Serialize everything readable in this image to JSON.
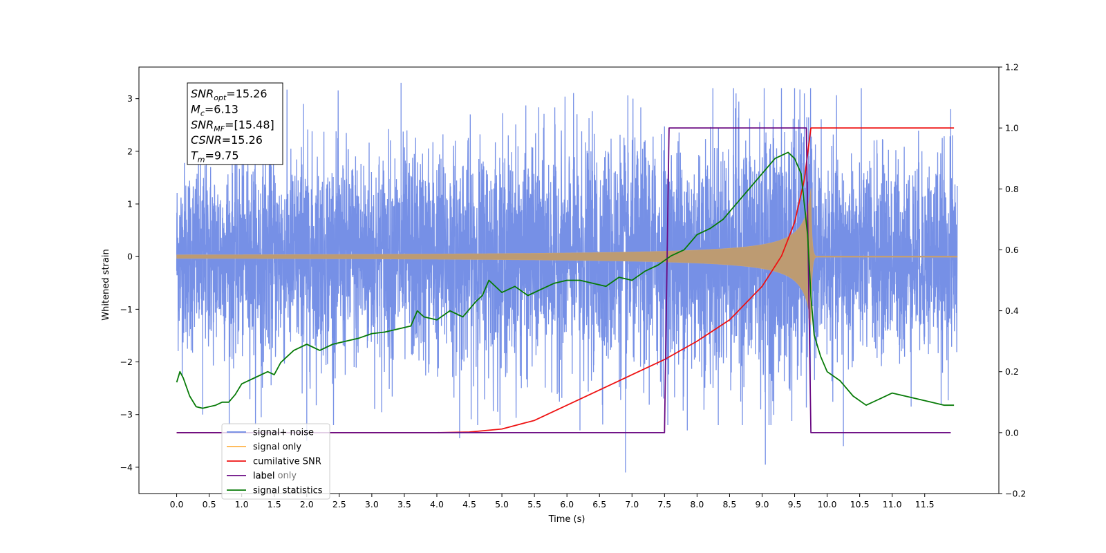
{
  "chart_data": {
    "type": "line",
    "xlabel": "Time (s)",
    "ylabel": "Whitened strain",
    "xlim": [
      -0.58,
      12.64
    ],
    "ylim": [
      -4.5,
      3.6
    ],
    "y2lim": [
      -0.2,
      1.2
    ],
    "x_ticks": [
      "0.0",
      "0.5",
      "1.0",
      "1.5",
      "2.0",
      "2.5",
      "3.0",
      "3.5",
      "4.0",
      "4.5",
      "5.0",
      "5.5",
      "6.0",
      "6.5",
      "7.0",
      "7.5",
      "8.0",
      "8.5",
      "9.0",
      "9.5",
      "10.0",
      "10.5",
      "11.0",
      "11.5"
    ],
    "y_ticks": [
      "3",
      "2",
      "1",
      "0",
      "−1",
      "−2",
      "−3",
      "−4"
    ],
    "y2_ticks": [
      "1.2",
      "1.0",
      "0.8",
      "0.6",
      "0.4",
      "0.2",
      "0.0",
      "−0.2"
    ],
    "legend_position": "lower-left",
    "series": [
      {
        "name": "signal+ noise",
        "color": "#6a87e4",
        "axis": "left",
        "kind": "noise",
        "x_range": [
          0,
          12
        ],
        "envelope": [
          [
            0,
            1.5
          ],
          [
            1,
            1.6
          ],
          [
            2,
            1.7
          ],
          [
            3,
            1.75
          ],
          [
            4,
            1.75
          ],
          [
            5,
            1.8
          ],
          [
            6,
            1.8
          ],
          [
            7,
            1.85
          ],
          [
            8,
            1.95
          ],
          [
            9,
            2.1
          ],
          [
            9.5,
            2.2
          ],
          [
            9.75,
            2.2
          ],
          [
            9.8,
            1.6
          ],
          [
            12,
            1.6
          ]
        ],
        "spikes": [
          [
            3.45,
            3.3
          ],
          [
            9.5,
            3.2
          ],
          [
            9.65,
            3.1
          ],
          [
            8.6,
            3.1
          ],
          [
            1.95,
            2.9
          ],
          [
            11.9,
            2.8
          ],
          [
            4.35,
            -3.45
          ],
          [
            6.9,
            -4.1
          ],
          [
            9.05,
            -3.95
          ],
          [
            10.25,
            -3.6
          ],
          [
            6.2,
            -3.3
          ],
          [
            7.85,
            -3.3
          ],
          [
            2.0,
            -3.5
          ],
          [
            0.4,
            -3.0
          ],
          [
            1.3,
            -3.05
          ]
        ]
      },
      {
        "name": "signal only",
        "color": "#ffb347",
        "axis": "left",
        "kind": "chirp",
        "merger_time": 9.75,
        "peak_amplitude": 1.3
      },
      {
        "name": "cumilative SNR",
        "color": "#ee1111",
        "axis": "right",
        "x": [
          0,
          4.0,
          4.5,
          5.0,
          5.5,
          6.0,
          6.5,
          7.0,
          7.5,
          8.0,
          8.5,
          9.0,
          9.3,
          9.5,
          9.65,
          9.75,
          11.95
        ],
        "y": [
          0,
          0,
          0.002,
          0.012,
          0.04,
          0.09,
          0.14,
          0.19,
          0.24,
          0.3,
          0.37,
          0.48,
          0.58,
          0.69,
          0.83,
          1.0,
          1.0
        ]
      },
      {
        "name": "label",
        "color": "#6a0a82",
        "axis": "right",
        "x": [
          0,
          7.5,
          7.57,
          9.68,
          9.75,
          11.9
        ],
        "y": [
          0,
          0,
          1.0,
          1.0,
          0,
          0
        ]
      },
      {
        "name": "signal statistics",
        "color": "#067a06",
        "axis": "right",
        "x": [
          0,
          0.05,
          0.1,
          0.2,
          0.3,
          0.4,
          0.5,
          0.6,
          0.7,
          0.8,
          0.9,
          1.0,
          1.2,
          1.4,
          1.5,
          1.6,
          1.7,
          1.8,
          2.0,
          2.2,
          2.4,
          2.6,
          2.8,
          3.0,
          3.2,
          3.4,
          3.6,
          3.7,
          3.8,
          4.0,
          4.2,
          4.4,
          4.6,
          4.7,
          4.8,
          5.0,
          5.2,
          5.4,
          5.6,
          5.8,
          6.0,
          6.2,
          6.4,
          6.6,
          6.8,
          7.0,
          7.2,
          7.4,
          7.6,
          7.8,
          8.0,
          8.2,
          8.4,
          8.6,
          8.8,
          9.0,
          9.2,
          9.4,
          9.5,
          9.6,
          9.7,
          9.75,
          9.8,
          9.9,
          10.0,
          10.2,
          10.4,
          10.6,
          10.8,
          11.0,
          11.2,
          11.4,
          11.6,
          11.8,
          11.95
        ],
        "y": [
          0.165,
          0.2,
          0.18,
          0.12,
          0.085,
          0.08,
          0.085,
          0.09,
          0.1,
          0.1,
          0.125,
          0.16,
          0.18,
          0.2,
          0.19,
          0.23,
          0.25,
          0.27,
          0.29,
          0.27,
          0.29,
          0.3,
          0.31,
          0.325,
          0.33,
          0.34,
          0.35,
          0.4,
          0.38,
          0.37,
          0.4,
          0.38,
          0.43,
          0.45,
          0.5,
          0.46,
          0.48,
          0.45,
          0.47,
          0.49,
          0.5,
          0.5,
          0.49,
          0.48,
          0.51,
          0.5,
          0.53,
          0.55,
          0.58,
          0.6,
          0.65,
          0.67,
          0.7,
          0.75,
          0.8,
          0.85,
          0.9,
          0.92,
          0.9,
          0.85,
          0.65,
          0.45,
          0.32,
          0.25,
          0.2,
          0.17,
          0.12,
          0.09,
          0.11,
          0.13,
          0.12,
          0.11,
          0.1,
          0.09,
          0.09
        ]
      }
    ]
  },
  "annotation": {
    "lines": [
      {
        "base": "SNR",
        "sub": "opt",
        "value": "=15.26"
      },
      {
        "base": "M",
        "sub": "c",
        "value": "=6.13"
      },
      {
        "base": "SNR",
        "sub": "MF",
        "value": "=[15.48]"
      },
      {
        "base": "CSNR",
        "sub": "",
        "value": "=15.26"
      },
      {
        "base": "T",
        "sub": "m",
        "value": "=9.75"
      }
    ]
  },
  "legend": {
    "items": [
      {
        "label": "signal+ noise",
        "color": "#6a87e4"
      },
      {
        "label": "signal only",
        "color": "#ffb347"
      },
      {
        "label": "cumilative SNR",
        "color": "#ee1111"
      },
      {
        "label": "label",
        "color": "#6a0a82"
      },
      {
        "label": "signal statistics",
        "color": "#067a06"
      }
    ],
    "ghost_text": [
      "label only"
    ]
  }
}
